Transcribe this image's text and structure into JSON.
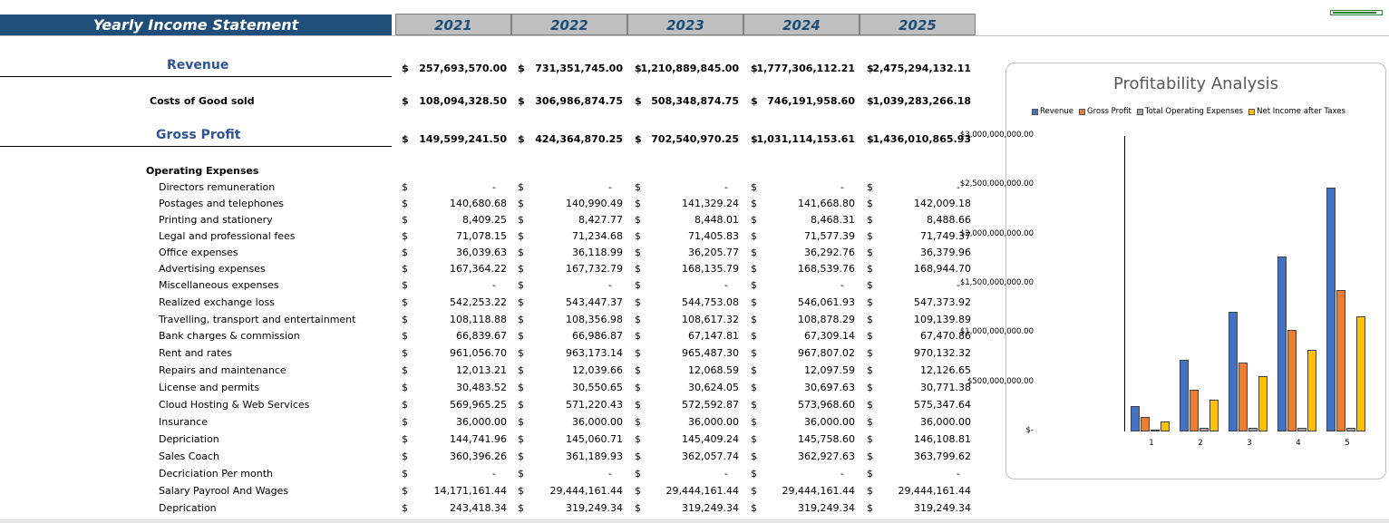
{
  "sheet": {
    "title": "Yearly Income Statement",
    "years": [
      "2021",
      "2022",
      "2023",
      "2024",
      "2025"
    ],
    "currency": "$"
  },
  "revenue": {
    "label": "Revenue",
    "values": [
      "257,693,570.00",
      "731,351,745.00",
      "1,210,889,845.00",
      "1,777,306,112.21",
      "2,475,294,132.11"
    ]
  },
  "cogs": {
    "label": "Costs of Good sold",
    "values": [
      "108,094,328.50",
      "306,986,874.75",
      "508,348,874.75",
      "746,191,958.60",
      "1,039,283,266.18"
    ]
  },
  "gross_profit": {
    "label": "Gross Profit",
    "values": [
      "149,599,241.50",
      "424,364,870.25",
      "702,540,970.25",
      "1,031,114,153.61",
      "1,436,010,865.93"
    ]
  },
  "opex": {
    "label": "Operating Expenses",
    "items": [
      {
        "label": "Directors remuneration",
        "values": [
          "-",
          "-",
          "-",
          "-",
          "-"
        ]
      },
      {
        "label": "Postages and telephones",
        "values": [
          "140,680.68",
          "140,990.49",
          "141,329.24",
          "141,668.80",
          "142,009.18"
        ]
      },
      {
        "label": "Printing and stationery",
        "values": [
          "8,409.25",
          "8,427.77",
          "8,448.01",
          "8,468.31",
          "8,488.66"
        ]
      },
      {
        "label": "Legal and professional fees",
        "values": [
          "71,078.15",
          "71,234.68",
          "71,405.83",
          "71,577.39",
          "71,749.37"
        ]
      },
      {
        "label": "Office expenses",
        "values": [
          "36,039.63",
          "36,118.99",
          "36,205.77",
          "36,292.76",
          "36,379.96"
        ]
      },
      {
        "label": "Advertising expenses",
        "values": [
          "167,364.22",
          "167,732.79",
          "168,135.79",
          "168,539.76",
          "168,944.70"
        ]
      },
      {
        "label": "Miscellaneous expenses",
        "values": [
          "-",
          "-",
          "-",
          "-",
          "-"
        ]
      },
      {
        "label": "Realized exchange loss",
        "values": [
          "542,253.22",
          "543,447.37",
          "544,753.08",
          "546,061.93",
          "547,373.92"
        ]
      },
      {
        "label": "Travelling, transport and entertainment",
        "values": [
          "108,118.88",
          "108,356.98",
          "108,617.32",
          "108,878.29",
          "109,139.89"
        ]
      },
      {
        "label": "Bank charges & commission",
        "values": [
          "66,839.67",
          "66,986.87",
          "67,147.81",
          "67,309.14",
          "67,470.86"
        ]
      },
      {
        "label": "Rent and rates",
        "values": [
          "961,056.70",
          "963,173.14",
          "965,487.30",
          "967,807.02",
          "970,132.32"
        ]
      },
      {
        "label": "Repairs and maintenance",
        "values": [
          "12,013.21",
          "12,039.66",
          "12,068.59",
          "12,097.59",
          "12,126.65"
        ]
      },
      {
        "label": "License and permits",
        "values": [
          "30,483.52",
          "30,550.65",
          "30,624.05",
          "30,697.63",
          "30,771.38"
        ]
      },
      {
        "label": "Cloud Hosting & Web Services",
        "values": [
          "569,965.25",
          "571,220.43",
          "572,592.87",
          "573,968.60",
          "575,347.64"
        ]
      },
      {
        "label": "Insurance",
        "values": [
          "36,000.00",
          "36,000.00",
          "36,000.00",
          "36,000.00",
          "36,000.00"
        ]
      },
      {
        "label": "Depriciation",
        "values": [
          "144,741.96",
          "145,060.71",
          "145,409.24",
          "145,758.60",
          "146,108.81"
        ]
      },
      {
        "label": "Sales Coach",
        "values": [
          "360,396.26",
          "361,189.93",
          "362,057.74",
          "362,927.63",
          "363,799.62"
        ]
      },
      {
        "label": "Decriciation Per month",
        "values": [
          "-",
          "-",
          "-",
          "-",
          "-"
        ]
      },
      {
        "label": "Salary Payrool And Wages",
        "values": [
          "14,171,161.44",
          "29,444,161.44",
          "29,444,161.44",
          "29,444,161.44",
          "29,444,161.44"
        ]
      },
      {
        "label": "Deprication",
        "values": [
          "243,418.34",
          "319,249.34",
          "319,249.34",
          "319,249.34",
          "319,249.34"
        ]
      }
    ]
  },
  "chart_data": {
    "type": "bar",
    "title": "Profitability Analysis",
    "categories": [
      "1",
      "2",
      "3",
      "4",
      "5"
    ],
    "series": [
      {
        "name": "Revenue",
        "color": "#4472c4",
        "values": [
          257693570,
          731351745,
          1210889845,
          1777306112,
          2475294132
        ]
      },
      {
        "name": "Gross Profit",
        "color": "#ed7d31",
        "values": [
          149599242,
          424364870,
          702540970,
          1031114154,
          1436010866
        ]
      },
      {
        "name": "Total Operating Expenses",
        "color": "#a5a5a5",
        "values": [
          17700000,
          33100000,
          33100000,
          33100000,
          33100000
        ]
      },
      {
        "name": "Net Income after Taxes",
        "color": "#ffc000",
        "values": [
          100000000,
          320000000,
          560000000,
          830000000,
          1170000000
        ]
      }
    ],
    "yticks": [
      "$3,000,000,000.00",
      "$2,500,000,000.00",
      "$2,000,000,000.00",
      "$1,500,000,000.00",
      "$1,000,000,000.00",
      "$500,000,000.00",
      "$-"
    ],
    "ylim": [
      0,
      3000000000
    ],
    "legend": "top"
  }
}
